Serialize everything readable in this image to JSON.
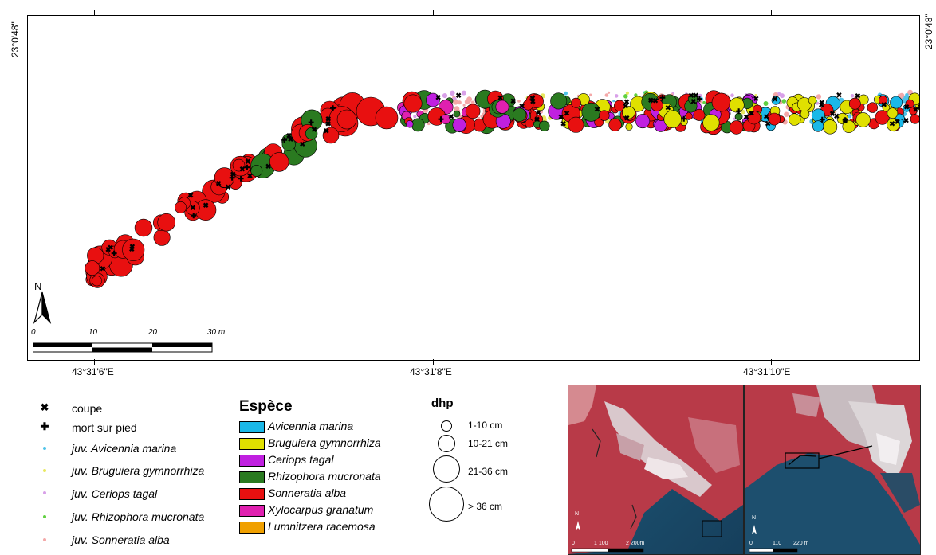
{
  "map": {
    "top_coord_left": "23°0'48\"",
    "top_coord_right": "23°0'48\"",
    "bottom_coords": [
      "43°31'6\"E",
      "43°31'8\"E",
      "43°31'10\"E"
    ],
    "north_label": "N",
    "scale_labels": [
      "0",
      "10",
      "20",
      "30 m"
    ]
  },
  "legend_points": {
    "items": [
      {
        "symbol": "✖",
        "label": "coupe",
        "italic": false
      },
      {
        "symbol": "✚",
        "label": "mort sur pied",
        "italic": false
      },
      {
        "symbol": "dot",
        "color": "#4fc3e8",
        "label": "juv. Avicennia marina",
        "italic": true
      },
      {
        "symbol": "dot",
        "color": "#e8e860",
        "label": "juv. Bruguiera gymnorrhiza",
        "italic": true
      },
      {
        "symbol": "dot",
        "color": "#d8a0e8",
        "label": "juv. Ceriops tagal",
        "italic": true
      },
      {
        "symbol": "dot",
        "color": "#60d040",
        "label": "juv. Rhizophora mucronata",
        "italic": true
      },
      {
        "symbol": "dot",
        "color": "#f4a8a8",
        "label": "juv. Sonneratia alba",
        "italic": true
      }
    ]
  },
  "legend_species": {
    "title": "Espèce",
    "items": [
      {
        "label": "Avicennia marina",
        "color": "#1ab8e8"
      },
      {
        "label": "Bruguiera gymnorrhiza",
        "color": "#e0e000"
      },
      {
        "label": "Ceriops tagal",
        "color": "#c020e0"
      },
      {
        "label": "Rhizophora mucronata",
        "color": "#2a7a20"
      },
      {
        "label": "Sonneratia alba",
        "color": "#e81010"
      },
      {
        "label": "Xylocarpus granatum",
        "color": "#e020b0"
      },
      {
        "label": "Lumnitzera racemosa",
        "color": "#f0a000"
      }
    ]
  },
  "legend_dhp": {
    "title": "dhp",
    "items": [
      "1-10 cm",
      "10-21 cm",
      "21-36 cm",
      "> 36 cm"
    ]
  },
  "inset_left": {
    "north": "N",
    "scale": [
      "0",
      "1 100",
      "2 200m"
    ]
  },
  "inset_right": {
    "north": "N",
    "scale": [
      "0",
      "110",
      "220 m"
    ]
  }
}
